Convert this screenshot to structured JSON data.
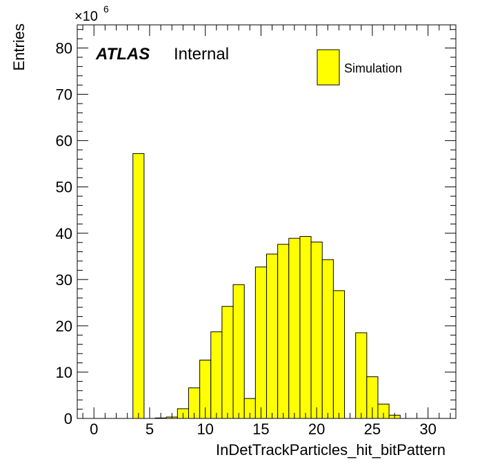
{
  "chart_data": {
    "type": "bar",
    "histogram": true,
    "xlabel": "InDetTrackParticles_hit_bitPattern",
    "ylabel": "Entries",
    "y_multiplier": "×10",
    "y_multiplier_exponent": "6",
    "xlim": [
      -1.5,
      32.5
    ],
    "ylim": [
      0,
      85
    ],
    "x_ticks": [
      0,
      5,
      10,
      15,
      20,
      25,
      30
    ],
    "y_ticks": [
      0,
      10,
      20,
      30,
      40,
      50,
      60,
      70,
      80
    ],
    "bin_width": 1,
    "bins": [
      {
        "x": 4,
        "value": 57.2
      },
      {
        "x": 6,
        "value": 0.1
      },
      {
        "x": 7,
        "value": 0.3
      },
      {
        "x": 8,
        "value": 2.1
      },
      {
        "x": 9,
        "value": 6.6
      },
      {
        "x": 10,
        "value": 12.6
      },
      {
        "x": 11,
        "value": 18.7
      },
      {
        "x": 12,
        "value": 24.2
      },
      {
        "x": 13,
        "value": 28.9
      },
      {
        "x": 14,
        "value": 4.3
      },
      {
        "x": 15,
        "value": 32.7
      },
      {
        "x": 16,
        "value": 35.5
      },
      {
        "x": 17,
        "value": 37.6
      },
      {
        "x": 18,
        "value": 38.9
      },
      {
        "x": 19,
        "value": 39.3
      },
      {
        "x": 20,
        "value": 38.1
      },
      {
        "x": 21,
        "value": 34.3
      },
      {
        "x": 22,
        "value": 27.6
      },
      {
        "x": 24,
        "value": 18.5
      },
      {
        "x": 25,
        "value": 9.0
      },
      {
        "x": 26,
        "value": 3.1
      },
      {
        "x": 27,
        "value": 0.7
      }
    ],
    "legend": {
      "placement": "top-right",
      "entries": [
        {
          "name": "Simulation",
          "color": "#ffff00"
        }
      ]
    },
    "annotation": {
      "label_bold": "ATLAS",
      "label_rest": "Internal"
    },
    "colors": {
      "fill": "#ffff00",
      "stroke": "#000000"
    }
  }
}
